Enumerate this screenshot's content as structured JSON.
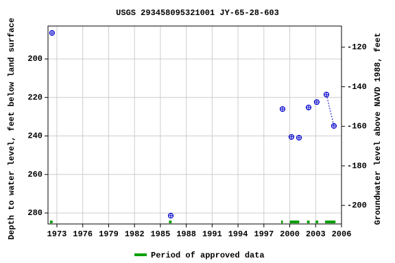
{
  "chart_data": {
    "type": "scatter",
    "title": "USGS 293458095321001 JY-65-28-603",
    "y_label": "Depth to water level, feet below land surface",
    "y2_label": "Groundwater level above NAVD 1988, feet",
    "x": [
      1972.44,
      1986.2,
      1999.16,
      2000.19,
      2001.07,
      2002.18,
      2003.13,
      2004.25,
      2005.12
    ],
    "values": [
      186.5,
      281.4,
      226.0,
      240.5,
      240.9,
      225.2,
      222.4,
      218.5,
      234.8
    ],
    "color": "#0000cc",
    "connected": [
      7,
      8
    ],
    "xlim": [
      1971.97,
      2006
    ],
    "xticks": [
      1973,
      1976,
      1979,
      1982,
      1985,
      1988,
      1991,
      1994,
      1997,
      2000,
      2003,
      2006
    ],
    "ylim": [
      182.9,
      285.7
    ],
    "yticks": [
      200,
      220,
      240,
      260,
      280
    ],
    "y_inverted": true,
    "y2lim": [
      -109.3,
      -209.4
    ],
    "y2ticks": [
      -120,
      -140,
      -160,
      -180,
      -200
    ],
    "grid": true,
    "approved_periods": {
      "name": "Period of approved data",
      "color": "#00a000",
      "ranges": [
        [
          1972.2,
          1972.5
        ],
        [
          1986.0,
          1986.3
        ],
        [
          1999.0,
          1999.2
        ],
        [
          2000.0,
          2001.1
        ],
        [
          2002.0,
          2002.3
        ],
        [
          2003.0,
          2003.3
        ],
        [
          2004.1,
          2005.3
        ]
      ]
    }
  }
}
